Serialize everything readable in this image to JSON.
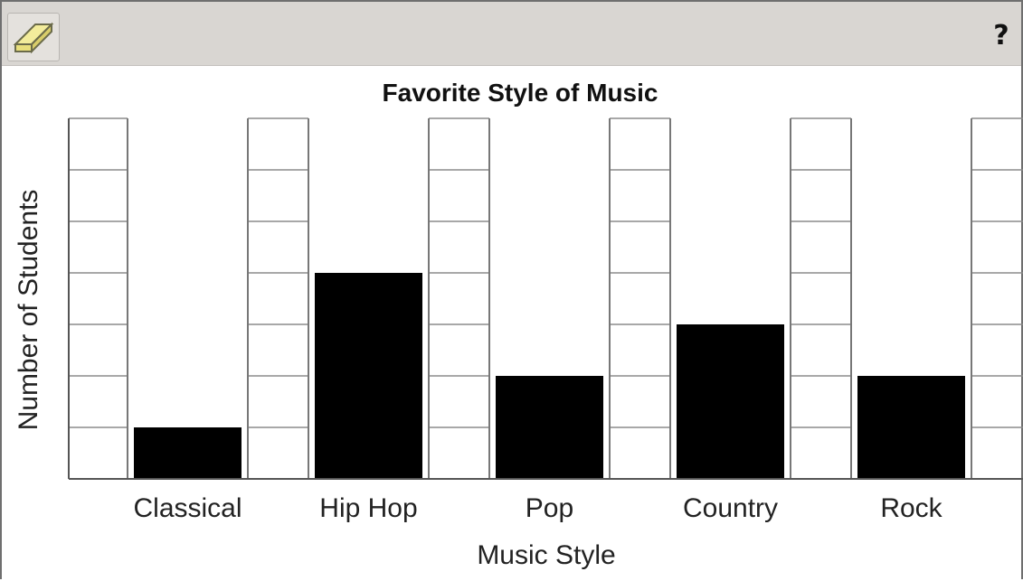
{
  "toolbar": {
    "eraser_icon": "eraser-icon",
    "help_label": "?"
  },
  "chart_data": {
    "type": "bar",
    "title": "Favorite Style of Music",
    "xlabel": "Music Style",
    "ylabel": "Number of Students",
    "categories": [
      "Classical",
      "Hip Hop",
      "Pop",
      "Country",
      "Rock"
    ],
    "values": [
      1,
      4,
      2,
      3,
      2
    ],
    "ylim": [
      0,
      7
    ],
    "grid": true,
    "bar_color": "#000000",
    "grid_color": "#8c8c8c"
  }
}
